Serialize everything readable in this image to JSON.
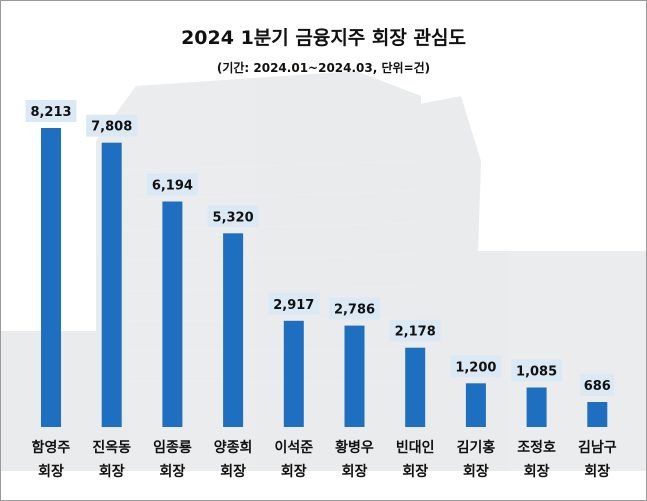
{
  "title": "2024 1분기 금융지주 회장  관심도",
  "subtitle": "(기간: 2024.01~2024.03, 단위=건)",
  "chart_data": {
    "type": "bar",
    "title": "2024 1분기 금융지주 회장  관심도",
    "subtitle": "(기간: 2024.01~2024.03, 단위=건)",
    "categories": [
      [
        "함영주",
        "회장"
      ],
      [
        "진옥동",
        "회장"
      ],
      [
        "임종룡",
        "회장"
      ],
      [
        "양종희",
        "회장"
      ],
      [
        "이석준",
        "회장"
      ],
      [
        "황병우",
        "회장"
      ],
      [
        "빈대인",
        "회장"
      ],
      [
        "김기홍",
        "회장"
      ],
      [
        "조정호",
        "회장"
      ],
      [
        "김남구",
        "회장"
      ]
    ],
    "values": [
      8213,
      7808,
      6194,
      5320,
      2917,
      2786,
      2178,
      1200,
      1085,
      686
    ],
    "value_labels": [
      "8,213",
      "7,808",
      "6,194",
      "5,320",
      "2,917",
      "2,786",
      "2,178",
      "1,200",
      "1,085",
      "686"
    ],
    "xlabel": "",
    "ylabel": "",
    "ylim": [
      0,
      8800
    ],
    "grid": false,
    "legend": "none",
    "bar_color": "#1f6fc0",
    "label_bg_color": "#dbe9f5"
  }
}
